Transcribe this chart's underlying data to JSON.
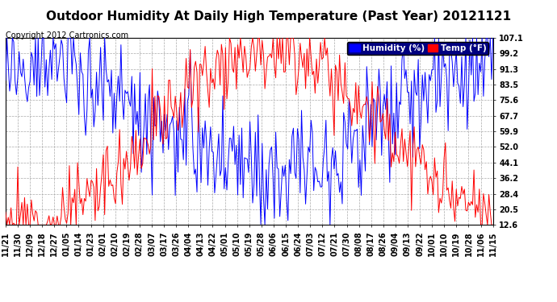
{
  "title": "Outdoor Humidity At Daily High Temperature (Past Year) 20121121",
  "copyright": "Copyright 2012 Cartronics.com",
  "legend_humidity": "Humidity (%)",
  "legend_temp": "Temp (°F)",
  "humidity_color": "#0000ff",
  "temp_color": "#ff0000",
  "bg_color": "#ffffff",
  "plot_bg_color": "#ffffff",
  "grid_color": "#aaaaaa",
  "yticks": [
    12.6,
    20.5,
    28.4,
    36.2,
    44.1,
    52.0,
    59.9,
    67.7,
    75.6,
    83.5,
    91.3,
    99.2,
    107.1
  ],
  "ylim": [
    12.6,
    107.1
  ],
  "title_fontsize": 11,
  "copyright_fontsize": 7,
  "legend_fontsize": 7.5,
  "tick_fontsize": 7,
  "start_date": "2011-11-21",
  "num_days": 360,
  "xtick_labels": [
    "11/21",
    "11/30",
    "12/09",
    "12/18",
    "12/27",
    "01/05",
    "01/14",
    "01/23",
    "02/01",
    "02/10",
    "02/19",
    "02/28",
    "03/07",
    "03/17",
    "03/26",
    "04/04",
    "04/13",
    "04/22",
    "05/01",
    "05/10",
    "05/19",
    "05/28",
    "06/06",
    "06/15",
    "06/24",
    "07/03",
    "07/12",
    "07/21",
    "07/30",
    "08/08",
    "08/17",
    "08/26",
    "09/04",
    "09/13",
    "09/22",
    "10/01",
    "10/10",
    "10/19",
    "10/28",
    "11/06",
    "11/15"
  ]
}
